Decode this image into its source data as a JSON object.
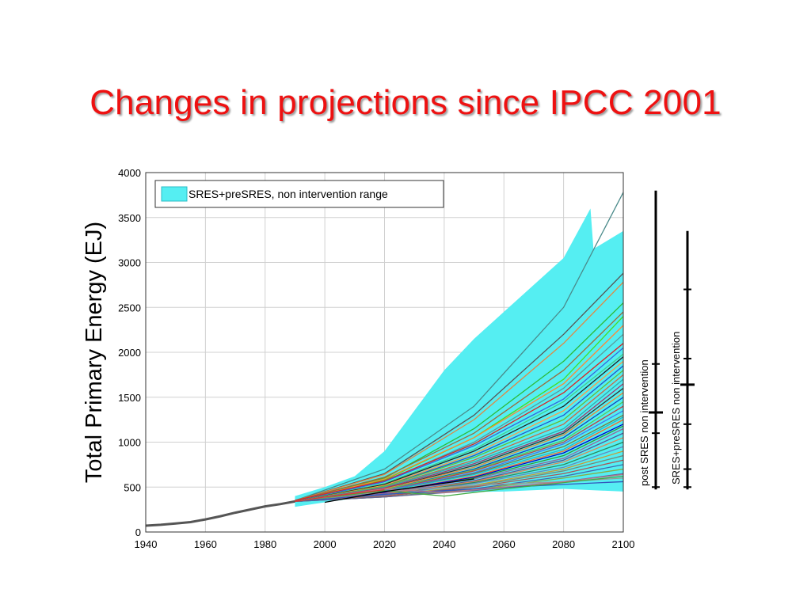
{
  "slide": {
    "title": "Changes in projections since IPCC 2001"
  },
  "chart_data": {
    "type": "line",
    "xlim": [
      1940,
      2100
    ],
    "ylim": [
      0,
      4000
    ],
    "x_ticks": [
      1940,
      1960,
      1980,
      2000,
      2020,
      2040,
      2060,
      2080,
      2100
    ],
    "y_ticks": [
      0,
      500,
      1000,
      1500,
      2000,
      2500,
      3000,
      3500,
      4000
    ],
    "ylabel": "Total Primary Energy (EJ)",
    "xlabel": "",
    "grid": true,
    "legend": {
      "position": "top-left",
      "entries": [
        {
          "label": "SRES+preSRES, non intervention range",
          "color": "#55eef2"
        }
      ]
    },
    "historical": {
      "color": "#555555",
      "x": [
        1940,
        1945,
        1950,
        1955,
        1960,
        1965,
        1970,
        1975,
        1980,
        1985,
        1990
      ],
      "y": [
        70,
        80,
        95,
        110,
        140,
        175,
        215,
        250,
        285,
        310,
        340
      ]
    },
    "range_band": {
      "color": "#55eef2",
      "x_upper": [
        1990,
        2000,
        2010,
        2020,
        2030,
        2040,
        2050,
        2060,
        2070,
        2080,
        2089,
        2090,
        2100
      ],
      "upper": [
        400,
        500,
        620,
        900,
        1350,
        1800,
        2150,
        2450,
        2750,
        3050,
        3600,
        3150,
        3350
      ],
      "x_lower": [
        2100,
        2080,
        2060,
        2040,
        2020,
        2000,
        1990
      ],
      "lower": [
        450,
        480,
        450,
        440,
        420,
        330,
        280
      ]
    },
    "scenario_series_note": "Approx. 60 scenario trajectories 1990–2100 (many colours)",
    "series": [
      {
        "color": "#4a8a8a",
        "x": [
          1990,
          2020,
          2050,
          2080,
          2100
        ],
        "y": [
          350,
          700,
          1400,
          2500,
          3780
        ]
      },
      {
        "color": "#555555",
        "x": [
          1990,
          2020,
          2050,
          2080,
          2100
        ],
        "y": [
          350,
          650,
          1300,
          2200,
          2880
        ]
      },
      {
        "color": "#e08844",
        "x": [
          1990,
          2020,
          2050,
          2080,
          2100
        ],
        "y": [
          350,
          640,
          1250,
          2100,
          2780
        ]
      },
      {
        "color": "#2bbb3b",
        "x": [
          1990,
          2020,
          2050,
          2080,
          2100
        ],
        "y": [
          340,
          600,
          1150,
          1900,
          2550
        ]
      },
      {
        "color": "#9a6b3b",
        "x": [
          1990,
          2020,
          2050,
          2080,
          2100
        ],
        "y": [
          350,
          610,
          1100,
          1800,
          2450
        ]
      },
      {
        "color": "#44dd22",
        "x": [
          1990,
          2020,
          2050,
          2080,
          2100
        ],
        "y": [
          340,
          580,
          1050,
          1700,
          2400
        ]
      },
      {
        "color": "#ff8833",
        "x": [
          1990,
          2020,
          2050,
          2080,
          2100
        ],
        "y": [
          340,
          590,
          1050,
          1650,
          2300
        ]
      },
      {
        "color": "#5a9a9a",
        "x": [
          1990,
          2020,
          2050,
          2080,
          2100
        ],
        "y": [
          340,
          560,
          1000,
          1600,
          2200
        ]
      },
      {
        "color": "#dd2222",
        "x": [
          1990,
          2020,
          2050,
          2080,
          2100
        ],
        "y": [
          350,
          570,
          980,
          1550,
          2100
        ]
      },
      {
        "color": "#3366dd",
        "x": [
          1990,
          2020,
          2050,
          2080,
          2100
        ],
        "y": [
          340,
          560,
          960,
          1480,
          2050
        ]
      },
      {
        "color": "#44cc88",
        "x": [
          1990,
          2020,
          2050,
          2080,
          2100
        ],
        "y": [
          340,
          540,
          920,
          1450,
          1980
        ]
      },
      {
        "color": "#222222",
        "x": [
          1990,
          2020,
          2050,
          2080,
          2100
        ],
        "y": [
          340,
          530,
          900,
          1400,
          1950
        ]
      },
      {
        "color": "#ff9944",
        "x": [
          1990,
          2020,
          2050,
          2080,
          2100
        ],
        "y": [
          340,
          520,
          870,
          1350,
          1900
        ]
      },
      {
        "color": "#2255cc",
        "x": [
          1990,
          2020,
          2050,
          2080,
          2100
        ],
        "y": [
          340,
          510,
          850,
          1300,
          1850
        ]
      },
      {
        "color": "#66bb33",
        "x": [
          1990,
          2020,
          2050,
          2080,
          2100
        ],
        "y": [
          340,
          510,
          830,
          1250,
          1800
        ]
      },
      {
        "color": "#cc6644",
        "x": [
          1990,
          2020,
          2050,
          2080,
          2100
        ],
        "y": [
          340,
          500,
          800,
          1200,
          1750
        ]
      },
      {
        "color": "#33aaaa",
        "x": [
          1990,
          2020,
          2050,
          2080,
          2100
        ],
        "y": [
          340,
          500,
          780,
          1150,
          1700
        ]
      },
      {
        "color": "#aa3366",
        "x": [
          1990,
          2020,
          2050,
          2080,
          2100
        ],
        "y": [
          340,
          490,
          760,
          1120,
          1650
        ]
      },
      {
        "color": "#333333",
        "x": [
          1990,
          2020,
          2050,
          2080,
          2100
        ],
        "y": [
          340,
          480,
          740,
          1100,
          1600
        ]
      },
      {
        "color": "#ee8833",
        "x": [
          1990,
          2020,
          2050,
          2080,
          2100
        ],
        "y": [
          340,
          480,
          720,
          1080,
          1550
        ]
      },
      {
        "color": "#1144bb",
        "x": [
          1990,
          2020,
          2050,
          2080,
          2100
        ],
        "y": [
          340,
          470,
          700,
          1050,
          1500
        ]
      },
      {
        "color": "#55cc55",
        "x": [
          1990,
          2020,
          2050,
          2080,
          2100
        ],
        "y": [
          340,
          470,
          690,
          1020,
          1450
        ]
      },
      {
        "color": "#c04040",
        "x": [
          1990,
          2020,
          2050,
          2080,
          2100
        ],
        "y": [
          340,
          460,
          680,
          1000,
          1400
        ]
      },
      {
        "color": "#4477ee",
        "x": [
          1990,
          2020,
          2050,
          2080,
          2100
        ],
        "y": [
          340,
          460,
          660,
          980,
          1350
        ]
      },
      {
        "color": "#7a7a3a",
        "x": [
          1990,
          2020,
          2050,
          2080,
          2100
        ],
        "y": [
          340,
          450,
          650,
          950,
          1300
        ]
      },
      {
        "color": "#22bbcc",
        "x": [
          1990,
          2020,
          2050,
          2080,
          2100
        ],
        "y": [
          340,
          450,
          640,
          920,
          1280
        ]
      },
      {
        "color": "#ff6622",
        "x": [
          1990,
          2020,
          2050,
          2080,
          2100
        ],
        "y": [
          340,
          440,
          620,
          900,
          1250
        ]
      },
      {
        "color": "#0000cc",
        "x": [
          1990,
          2020,
          2050,
          2080,
          2100
        ],
        "y": [
          340,
          440,
          610,
          880,
          1200
        ]
      },
      {
        "color": "#339933",
        "x": [
          1990,
          2020,
          2050,
          2080,
          2100
        ],
        "y": [
          340,
          430,
          600,
          850,
          1180
        ]
      },
      {
        "color": "#996699",
        "x": [
          1990,
          2020,
          2050,
          2080,
          2100
        ],
        "y": [
          340,
          430,
          590,
          820,
          1150
        ]
      },
      {
        "color": "#555599",
        "x": [
          1990,
          2020,
          2050,
          2080,
          2100
        ],
        "y": [
          340,
          420,
          570,
          800,
          1100
        ]
      },
      {
        "color": "#dd8855",
        "x": [
          1990,
          2020,
          2050,
          2080,
          2100
        ],
        "y": [
          340,
          420,
          560,
          780,
          1050
        ]
      },
      {
        "color": "#2a8a5a",
        "x": [
          1990,
          2020,
          2050,
          2080,
          2100
        ],
        "y": [
          340,
          410,
          550,
          750,
          1000
        ]
      },
      {
        "color": "#6688bb",
        "x": [
          1990,
          2020,
          2050,
          2080,
          2100
        ],
        "y": [
          340,
          410,
          540,
          720,
          950
        ]
      },
      {
        "color": "#cc9933",
        "x": [
          1990,
          2020,
          2050,
          2080,
          2100
        ],
        "y": [
          340,
          400,
          520,
          700,
          900
        ]
      },
      {
        "color": "#778877",
        "x": [
          1990,
          2020,
          2050,
          2080,
          2100
        ],
        "y": [
          340,
          400,
          510,
          680,
          850
        ]
      },
      {
        "color": "#aa5555",
        "x": [
          1990,
          2020,
          2050,
          2080,
          2100
        ],
        "y": [
          340,
          400,
          500,
          650,
          800
        ]
      },
      {
        "color": "#4466aa",
        "x": [
          1990,
          2020,
          2050,
          2080,
          2100
        ],
        "y": [
          340,
          390,
          480,
          620,
          750
        ]
      },
      {
        "color": "#88aa44",
        "x": [
          1990,
          2020,
          2050,
          2080,
          2100
        ],
        "y": [
          340,
          390,
          470,
          600,
          700
        ]
      },
      {
        "color": "#666699",
        "x": [
          1990,
          2020,
          2050,
          2080,
          2100
        ],
        "y": [
          340,
          390,
          460,
          560,
          650
        ]
      },
      {
        "color": "#999999",
        "x": [
          1990,
          2020,
          2050,
          2080,
          2100
        ],
        "y": [
          340,
          450,
          520,
          560,
          600
        ]
      },
      {
        "color": "#3355bb",
        "x": [
          1990,
          2020,
          2050,
          2080,
          2100
        ],
        "y": [
          340,
          420,
          480,
          530,
          560
        ]
      },
      {
        "color": "#44aa44",
        "x": [
          1990,
          2020,
          2040,
          2060,
          2080,
          2100
        ],
        "y": [
          340,
          460,
          400,
          480,
          550,
          620
        ]
      },
      {
        "color": "#bb7788",
        "x": [
          1990,
          2020,
          2040,
          2060,
          2080,
          2100
        ],
        "y": [
          340,
          480,
          440,
          500,
          560,
          640
        ]
      },
      {
        "color": "#000000",
        "x": [
          2000,
          2020,
          2050
        ],
        "y": [
          330,
          450,
          590
        ]
      },
      {
        "color": "#dd3333",
        "x": [
          1990,
          2000,
          2020
        ],
        "y": [
          340,
          390,
          470
        ]
      }
    ]
  },
  "range_bars": [
    {
      "label": "post SRES non intervention",
      "min": 500,
      "q1": 1100,
      "median": 1330,
      "q3": 1870,
      "max": 3800
    },
    {
      "label": "SRES+preSRES non intervention",
      "min": 500,
      "q1": 700,
      "median": 1640,
      "q3": 1930,
      "max": 3350,
      "extra_ticks": [
        1200,
        2700
      ]
    }
  ]
}
